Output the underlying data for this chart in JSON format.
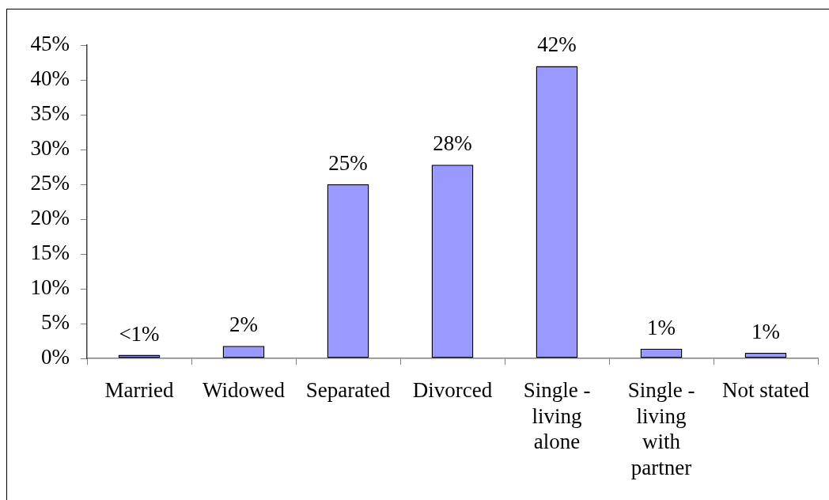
{
  "chart_data": {
    "type": "bar",
    "categories": [
      "Married",
      "Widowed",
      "Separated",
      "Divorced",
      "Single - living alone",
      "Single - living with partner",
      "Not stated"
    ],
    "values": [
      0.5,
      1.8,
      25,
      27.8,
      42,
      1.4,
      0.8
    ],
    "value_labels": [
      "<1%",
      "2%",
      "25%",
      "28%",
      "42%",
      "1%",
      "1%"
    ],
    "color": "#9999ff",
    "ylim": [
      0,
      45
    ],
    "yticks": [
      {
        "value": 0,
        "label": "0%"
      },
      {
        "value": 5,
        "label": "5%"
      },
      {
        "value": 10,
        "label": "10%"
      },
      {
        "value": 15,
        "label": "15%"
      },
      {
        "value": 20,
        "label": "20%"
      },
      {
        "value": 25,
        "label": "25%"
      },
      {
        "value": 30,
        "label": "30%"
      },
      {
        "value": 35,
        "label": "35%"
      },
      {
        "value": 40,
        "label": "40%"
      },
      {
        "value": 45,
        "label": "45%"
      }
    ],
    "grid": false,
    "legend": false
  }
}
